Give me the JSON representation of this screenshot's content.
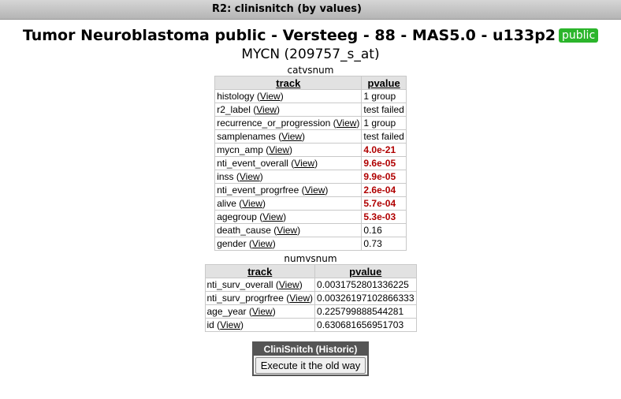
{
  "window": {
    "title": "R2: clinisnitch (by values)"
  },
  "header": {
    "title": "Tumor Neuroblastoma public - Versteeg - 88 - MAS5.0 - u133p2",
    "badge": "public",
    "subtitle": "MYCN (209757_s_at)"
  },
  "colors": {
    "badge": "#2bb52b",
    "significant": "#b00000"
  },
  "view_label": "View",
  "catvsnum": {
    "caption": "catvsnum",
    "columns": [
      "track",
      "pvalue"
    ],
    "rows": [
      {
        "track": "histology",
        "pvalue": "1 group",
        "significant": false
      },
      {
        "track": "r2_label",
        "pvalue": "test failed",
        "significant": false
      },
      {
        "track": "recurrence_or_progression",
        "pvalue": "1 group",
        "significant": false
      },
      {
        "track": "samplenames",
        "pvalue": "test failed",
        "significant": false
      },
      {
        "track": "mycn_amp",
        "pvalue": "4.0e-21",
        "significant": true
      },
      {
        "track": "nti_event_overall",
        "pvalue": "9.6e-05",
        "significant": true
      },
      {
        "track": "inss",
        "pvalue": "9.9e-05",
        "significant": true
      },
      {
        "track": "nti_event_progrfree",
        "pvalue": "2.6e-04",
        "significant": true
      },
      {
        "track": "alive",
        "pvalue": "5.7e-04",
        "significant": true
      },
      {
        "track": "agegroup",
        "pvalue": "5.3e-03",
        "significant": true
      },
      {
        "track": "death_cause",
        "pvalue": "0.16",
        "significant": false
      },
      {
        "track": "gender",
        "pvalue": "0.73",
        "significant": false
      }
    ]
  },
  "numvsnum": {
    "caption": "numvsnum",
    "columns": [
      "track",
      "pvalue"
    ],
    "rows": [
      {
        "track": "nti_surv_overall",
        "pvalue": "0.0031752801336225",
        "significant": false
      },
      {
        "track": "nti_surv_progrfree",
        "pvalue": "0.00326197102866333",
        "significant": false
      },
      {
        "track": "age_year",
        "pvalue": "0.225799888544281",
        "significant": false
      },
      {
        "track": "id",
        "pvalue": "0.630681656951703",
        "significant": false
      }
    ]
  },
  "historic": {
    "title": "CliniSnitch (Historic)",
    "button_label": "Execute it the old way"
  }
}
